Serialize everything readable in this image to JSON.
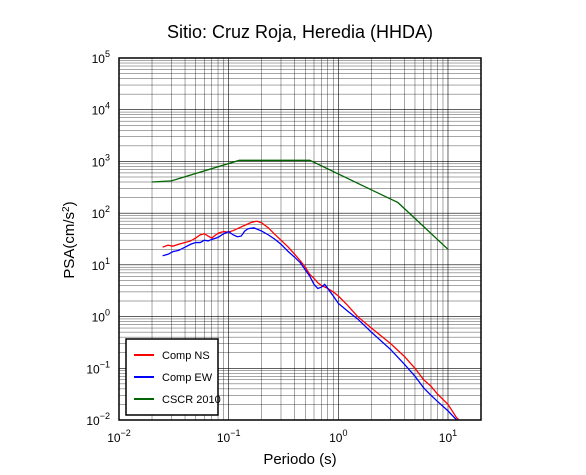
{
  "chart_data": {
    "type": "line",
    "title": "Sitio: Cruz Roja, Heredia (HHDA)",
    "xlabel": "Periodo (s)",
    "ylabel_main": "PSA(cm/s",
    "ylabel_sup": "2",
    "ylabel_close": ")",
    "x_scale": "log",
    "y_scale": "log",
    "xlim": [
      0.01,
      20
    ],
    "ylim": [
      0.01,
      100000
    ],
    "grid": true,
    "legend_position": "bottom-left",
    "x_ticks": [
      {
        "value": 0.01,
        "base": "10",
        "exp": "−2"
      },
      {
        "value": 0.1,
        "base": "10",
        "exp": "−1"
      },
      {
        "value": 1,
        "base": "10",
        "exp": "0"
      },
      {
        "value": 10,
        "base": "10",
        "exp": "1"
      }
    ],
    "y_ticks": [
      {
        "value": 0.01,
        "base": "10",
        "exp": "−2"
      },
      {
        "value": 0.1,
        "base": "10",
        "exp": "−1"
      },
      {
        "value": 1,
        "base": "10",
        "exp": "0"
      },
      {
        "value": 10,
        "base": "10",
        "exp": "1"
      },
      {
        "value": 100,
        "base": "10",
        "exp": "2"
      },
      {
        "value": 1000,
        "base": "10",
        "exp": "3"
      },
      {
        "value": 10000,
        "base": "10",
        "exp": "4"
      },
      {
        "value": 100000,
        "base": "10",
        "exp": "5"
      }
    ],
    "series": [
      {
        "name": "Comp NS",
        "color": "#ff0000",
        "points": [
          [
            0.025,
            22
          ],
          [
            0.028,
            24
          ],
          [
            0.031,
            23
          ],
          [
            0.035,
            25
          ],
          [
            0.04,
            27
          ],
          [
            0.045,
            29
          ],
          [
            0.05,
            33
          ],
          [
            0.055,
            38
          ],
          [
            0.06,
            40
          ],
          [
            0.065,
            36
          ],
          [
            0.07,
            33
          ],
          [
            0.075,
            37
          ],
          [
            0.08,
            41
          ],
          [
            0.09,
            44
          ],
          [
            0.1,
            43
          ],
          [
            0.11,
            46
          ],
          [
            0.125,
            52
          ],
          [
            0.14,
            58
          ],
          [
            0.16,
            66
          ],
          [
            0.18,
            70
          ],
          [
            0.2,
            65
          ],
          [
            0.23,
            52
          ],
          [
            0.26,
            40
          ],
          [
            0.3,
            30
          ],
          [
            0.35,
            22
          ],
          [
            0.4,
            16
          ],
          [
            0.45,
            12
          ],
          [
            0.5,
            9
          ],
          [
            0.55,
            6.5
          ],
          [
            0.6,
            5.5
          ],
          [
            0.65,
            4.5
          ],
          [
            0.7,
            4
          ],
          [
            0.8,
            3.5
          ],
          [
            0.9,
            3
          ],
          [
            1.0,
            2.5
          ],
          [
            1.2,
            1.7
          ],
          [
            1.5,
            1.0
          ],
          [
            2.0,
            0.6
          ],
          [
            3.0,
            0.3
          ],
          [
            4.0,
            0.17
          ],
          [
            5.0,
            0.1
          ],
          [
            6.0,
            0.06
          ],
          [
            7.0,
            0.045
          ],
          [
            8.0,
            0.032
          ],
          [
            10.0,
            0.02
          ],
          [
            12.0,
            0.011
          ],
          [
            13.0,
            0.0095
          ]
        ]
      },
      {
        "name": "Comp EW",
        "color": "#0000ff",
        "points": [
          [
            0.025,
            15
          ],
          [
            0.028,
            16
          ],
          [
            0.031,
            18
          ],
          [
            0.035,
            19
          ],
          [
            0.04,
            22
          ],
          [
            0.045,
            25
          ],
          [
            0.05,
            27
          ],
          [
            0.055,
            27
          ],
          [
            0.06,
            30
          ],
          [
            0.065,
            29
          ],
          [
            0.07,
            31
          ],
          [
            0.08,
            34
          ],
          [
            0.09,
            40
          ],
          [
            0.1,
            44
          ],
          [
            0.11,
            38
          ],
          [
            0.12,
            35
          ],
          [
            0.13,
            36
          ],
          [
            0.14,
            45
          ],
          [
            0.15,
            50
          ],
          [
            0.17,
            52
          ],
          [
            0.2,
            45
          ],
          [
            0.23,
            38
          ],
          [
            0.26,
            32
          ],
          [
            0.3,
            25
          ],
          [
            0.35,
            18
          ],
          [
            0.4,
            14
          ],
          [
            0.45,
            11
          ],
          [
            0.5,
            8
          ],
          [
            0.55,
            6
          ],
          [
            0.6,
            4.2
          ],
          [
            0.65,
            3.5
          ],
          [
            0.7,
            3.7
          ],
          [
            0.75,
            4.2
          ],
          [
            0.8,
            3.5
          ],
          [
            0.9,
            2.5
          ],
          [
            1.0,
            1.8
          ],
          [
            1.2,
            1.3
          ],
          [
            1.5,
            0.9
          ],
          [
            2.0,
            0.5
          ],
          [
            3.0,
            0.23
          ],
          [
            4.0,
            0.12
          ],
          [
            5.0,
            0.07
          ],
          [
            6.0,
            0.042
          ],
          [
            7.0,
            0.03
          ],
          [
            8.0,
            0.023
          ],
          [
            10.0,
            0.015
          ],
          [
            12.0,
            0.01
          ]
        ]
      },
      {
        "name": "CSCR 2010",
        "color": "#006400",
        "points": [
          [
            0.02,
            400
          ],
          [
            0.03,
            420
          ],
          [
            0.125,
            1050
          ],
          [
            0.55,
            1050
          ],
          [
            3.5,
            160
          ],
          [
            10.0,
            20
          ]
        ]
      }
    ]
  }
}
